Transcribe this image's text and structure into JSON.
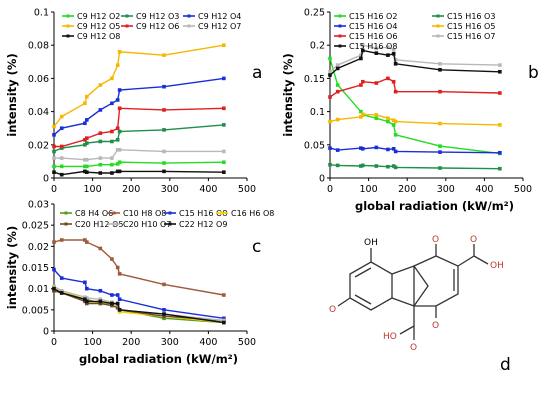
{
  "chart_data": [
    {
      "panel_label": "a",
      "type": "line",
      "xlim": [
        0,
        500
      ],
      "ylim": [
        0,
        0.1
      ],
      "xticks": [
        "0",
        "100",
        "200",
        "300",
        "400",
        "500"
      ],
      "yticks": [
        "0",
        "0.02",
        "0.04",
        "0.06",
        "0.08",
        "0.1"
      ],
      "xlabel": "",
      "ylabel": "intensity (%)",
      "legend_columns": 3,
      "x": [
        0,
        20,
        80,
        85,
        120,
        150,
        165,
        170,
        285,
        440
      ],
      "series": [
        {
          "name": "C9 H12 O2",
          "color": "#22dd22",
          "values": [
            0.007,
            0.007,
            0.007,
            0.007,
            0.008,
            0.008,
            0.0085,
            0.0095,
            0.009,
            0.0095
          ]
        },
        {
          "name": "C9 H12 O3",
          "color": "#1e8f4a",
          "values": [
            0.016,
            0.018,
            0.02,
            0.021,
            0.022,
            0.022,
            0.023,
            0.028,
            0.029,
            0.032
          ]
        },
        {
          "name": "C9 H12 O4",
          "color": "#1a2ed8",
          "values": [
            0.026,
            0.03,
            0.033,
            0.035,
            0.041,
            0.045,
            0.047,
            0.053,
            0.055,
            0.06
          ]
        },
        {
          "name": "C9 H12 O5",
          "color": "#f5b800",
          "values": [
            0.031,
            0.037,
            0.045,
            0.049,
            0.056,
            0.06,
            0.068,
            0.076,
            0.074,
            0.08
          ]
        },
        {
          "name": "C9 H12 O6",
          "color": "#e02020",
          "values": [
            0.019,
            0.019,
            0.023,
            0.024,
            0.027,
            0.028,
            0.03,
            0.042,
            0.041,
            0.042
          ]
        },
        {
          "name": "C9 H12 O7",
          "color": "#b8b8b8",
          "values": [
            0.012,
            0.012,
            0.011,
            0.011,
            0.012,
            0.012,
            0.017,
            0.017,
            0.016,
            0.016
          ]
        },
        {
          "name": "C9 H12 O8",
          "color": "#111111",
          "values": [
            0.0035,
            0.002,
            0.004,
            0.0035,
            0.003,
            0.003,
            0.004,
            0.004,
            0.004,
            0.0035
          ]
        }
      ]
    },
    {
      "panel_label": "b",
      "type": "line",
      "xlim": [
        0,
        500
      ],
      "ylim": [
        0,
        0.25
      ],
      "xticks": [
        "0",
        "100",
        "200",
        "300",
        "400",
        "500"
      ],
      "yticks": [
        "0",
        "0.05",
        "0.1",
        "0.15",
        "0.2",
        "0.25"
      ],
      "xlabel": "global radiation (kW/m²)",
      "ylabel": "intensity (%)",
      "legend_columns": 2,
      "x": [
        0,
        20,
        80,
        85,
        120,
        150,
        165,
        170,
        285,
        440
      ],
      "series": [
        {
          "name": "C15 H16 O2",
          "color": "#22dd22",
          "values": [
            0.18,
            0.14,
            0.1,
            0.095,
            0.09,
            0.085,
            0.08,
            0.065,
            0.048,
            0.037
          ]
        },
        {
          "name": "C15 H16 O3",
          "color": "#1e8f4a",
          "values": [
            0.02,
            0.019,
            0.018,
            0.019,
            0.018,
            0.017,
            0.018,
            0.016,
            0.015,
            0.014
          ]
        },
        {
          "name": "C15 H16 O4",
          "color": "#1a2ed8",
          "values": [
            0.045,
            0.042,
            0.045,
            0.044,
            0.046,
            0.043,
            0.044,
            0.04,
            0.039,
            0.038
          ]
        },
        {
          "name": "C15 H16 O5",
          "color": "#f5b800",
          "values": [
            0.085,
            0.088,
            0.092,
            0.096,
            0.095,
            0.09,
            0.087,
            0.085,
            0.082,
            0.08
          ]
        },
        {
          "name": "C15 H16 O6",
          "color": "#e02020",
          "values": [
            0.122,
            0.13,
            0.14,
            0.145,
            0.143,
            0.15,
            0.145,
            0.13,
            0.13,
            0.128
          ]
        },
        {
          "name": "C15 H16 O7",
          "color": "#b8b8b8",
          "values": [
            0.16,
            0.17,
            0.185,
            0.2,
            0.195,
            0.197,
            0.193,
            0.178,
            0.172,
            0.17
          ]
        },
        {
          "name": "C15 H16 O8",
          "color": "#111111",
          "values": [
            0.155,
            0.165,
            0.18,
            0.192,
            0.188,
            0.185,
            0.187,
            0.172,
            0.163,
            0.16
          ]
        }
      ]
    },
    {
      "panel_label": "c",
      "type": "line",
      "xlim": [
        0,
        500
      ],
      "ylim": [
        0,
        0.03
      ],
      "xticks": [
        "0",
        "100",
        "200",
        "300",
        "400",
        "500"
      ],
      "yticks": [
        "0",
        "0.005",
        "0.01",
        "0.015",
        "0.02",
        "0.025",
        "0.03"
      ],
      "xlabel": "global radiation (kW/m²)",
      "ylabel": "intensity (%)",
      "legend_columns": 4,
      "x": [
        0,
        20,
        80,
        85,
        120,
        150,
        165,
        170,
        285,
        440
      ],
      "series": [
        {
          "name": "C8 H4 O6",
          "color": "#5a9a1a",
          "values": [
            0.0095,
            0.009,
            0.0075,
            0.0075,
            0.0065,
            0.0065,
            0.006,
            0.005,
            0.003,
            0.002
          ]
        },
        {
          "name": "C10 H8 O8",
          "color": "#a05a3c",
          "values": [
            0.021,
            0.0215,
            0.0215,
            0.021,
            0.0195,
            0.017,
            0.015,
            0.0135,
            0.011,
            0.0085
          ]
        },
        {
          "name": "C15 H16 O8",
          "color": "#1a2ed8",
          "values": [
            0.0145,
            0.0125,
            0.0115,
            0.01,
            0.0095,
            0.0085,
            0.0085,
            0.0075,
            0.005,
            0.003
          ]
        },
        {
          "name": "C16 H6 O8",
          "color": "#f5d500",
          "values": [
            0.0105,
            0.0095,
            0.0075,
            0.007,
            0.0068,
            0.0065,
            0.006,
            0.0045,
            0.0035,
            0.002
          ]
        },
        {
          "name": "C20 H12 O5",
          "color": "#6b4a2a",
          "values": [
            0.0095,
            0.009,
            0.007,
            0.0065,
            0.0065,
            0.006,
            0.0055,
            0.005,
            0.0035,
            0.0025
          ]
        },
        {
          "name": "C20 H10 O7",
          "color": "#b8b8b8",
          "values": [
            0.0105,
            0.0095,
            0.008,
            0.0078,
            0.0075,
            0.0068,
            0.0062,
            0.005,
            0.004,
            0.0025
          ]
        },
        {
          "name": "C22 H12 O9",
          "color": "#111111",
          "values": [
            0.01,
            0.009,
            0.0075,
            0.007,
            0.007,
            0.0065,
            0.0065,
            0.005,
            0.004,
            0.002
          ]
        }
      ]
    }
  ],
  "structure_d": {
    "panel_label": "d",
    "labels": {
      "oh_top": "OH",
      "o": "O",
      "ho": "HO",
      "oh": "OH"
    }
  }
}
